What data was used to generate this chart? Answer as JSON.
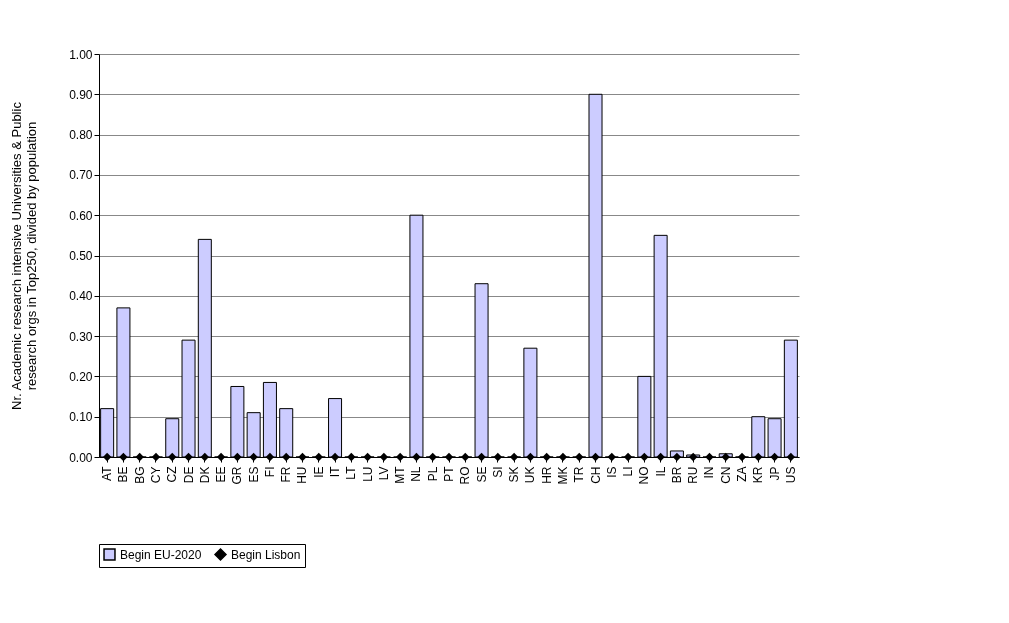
{
  "chart_data": {
    "type": "bar",
    "ylabel": "Nr. Academic research intensive Universities & Public\nresearch orgs in Top250, divided by population",
    "categories": [
      "AT",
      "BE",
      "BG",
      "CY",
      "CZ",
      "DE",
      "DK",
      "EE",
      "GR",
      "ES",
      "FI",
      "FR",
      "HU",
      "IE",
      "IT",
      "LT",
      "LU",
      "LV",
      "MT",
      "NL",
      "PL",
      "PT",
      "RO",
      "SE",
      "SI",
      "SK",
      "UK",
      "HR",
      "MK",
      "TR",
      "CH",
      "IS",
      "LI",
      "NO",
      "IL",
      "BR",
      "RU",
      "IN",
      "CN",
      "ZA",
      "KR",
      "JP",
      "US"
    ],
    "series": [
      {
        "name": "Begin EU-2020",
        "color": "#ccccff",
        "values": [
          0.12,
          0.37,
          0,
          0,
          0.095,
          0.29,
          0.54,
          0,
          0.175,
          0.11,
          0.185,
          0.12,
          0,
          0,
          0.145,
          0,
          0,
          0,
          0,
          0.6,
          0,
          0,
          0,
          0.43,
          0,
          0,
          0.27,
          0,
          0,
          0,
          0.9,
          0,
          0,
          0.2,
          0.55,
          0.015,
          0.005,
          0,
          0.008,
          0,
          0.1,
          0.095,
          0.29
        ]
      },
      {
        "name": "Begin Lisbon",
        "type": "scatter",
        "color": "#000000",
        "marker": "diamond",
        "values": [
          0,
          0,
          0,
          0,
          0,
          0,
          0,
          0,
          0,
          0,
          0,
          0,
          0,
          0,
          0,
          0,
          0,
          0,
          0,
          0,
          0,
          0,
          0,
          0,
          0,
          0,
          0,
          0,
          0,
          0,
          0,
          0,
          0,
          0,
          0,
          0,
          0,
          0,
          0,
          0,
          0,
          0,
          0
        ]
      }
    ],
    "ylim": [
      0,
      1
    ],
    "yticks": [
      {
        "value": 0,
        "label": "0.00"
      },
      {
        "value": 0.1,
        "label": "0.10"
      },
      {
        "value": 0.2,
        "label": "0.20"
      },
      {
        "value": 0.3,
        "label": "0.30"
      },
      {
        "value": 0.4,
        "label": "0.40"
      },
      {
        "value": 0.5,
        "label": "0.50"
      },
      {
        "value": 0.6,
        "label": "0.60"
      },
      {
        "value": 0.7,
        "label": "0.70"
      },
      {
        "value": 0.8,
        "label": "0.80"
      },
      {
        "value": 0.9,
        "label": "0.90"
      },
      {
        "value": 1,
        "label": "1.00"
      }
    ],
    "grid": "y",
    "legend": "bottom"
  }
}
